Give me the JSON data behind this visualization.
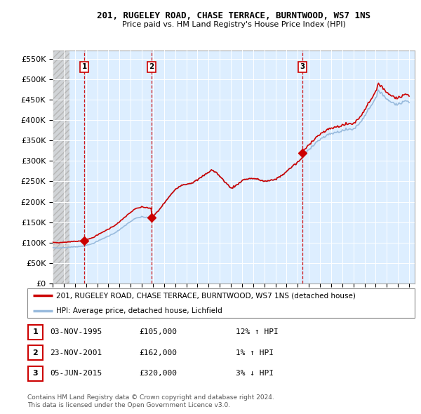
{
  "title1": "201, RUGELEY ROAD, CHASE TERRACE, BURNTWOOD, WS7 1NS",
  "title2": "Price paid vs. HM Land Registry's House Price Index (HPI)",
  "ylim": [
    0,
    550000
  ],
  "ytick_labels": [
    "£0",
    "£50K",
    "£100K",
    "£150K",
    "£200K",
    "£250K",
    "£300K",
    "£350K",
    "£400K",
    "£450K",
    "£500K",
    "£550K"
  ],
  "ytick_values": [
    0,
    50000,
    100000,
    150000,
    200000,
    250000,
    300000,
    350000,
    400000,
    450000,
    500000,
    550000
  ],
  "sale_dates_decimal": [
    1995.838,
    2001.896,
    2015.421
  ],
  "sale_prices": [
    105000,
    162000,
    320000
  ],
  "sale_labels": [
    "1",
    "2",
    "3"
  ],
  "legend_line1": "201, RUGELEY ROAD, CHASE TERRACE, BURNTWOOD, WS7 1NS (detached house)",
  "legend_line2": "HPI: Average price, detached house, Lichfield",
  "table_data": [
    [
      "1",
      "03-NOV-1995",
      "£105,000",
      "12% ↑ HPI"
    ],
    [
      "2",
      "23-NOV-2001",
      "£162,000",
      "1% ↑ HPI"
    ],
    [
      "3",
      "05-JUN-2015",
      "£320,000",
      "3% ↓ HPI"
    ]
  ],
  "footer1": "Contains HM Land Registry data © Crown copyright and database right 2024.",
  "footer2": "This data is licensed under the Open Government Licence v3.0.",
  "sale_line_color": "#cc0000",
  "hpi_line_color": "#99bbdd",
  "sale_marker_color": "#cc0000",
  "vline_color": "#cc0000",
  "chart_bg_color": "#ddeeff",
  "hatch_bg_color": "#cccccc",
  "grid_color": "#ffffff",
  "xlim_start": 1993.0,
  "xlim_end": 2025.5
}
